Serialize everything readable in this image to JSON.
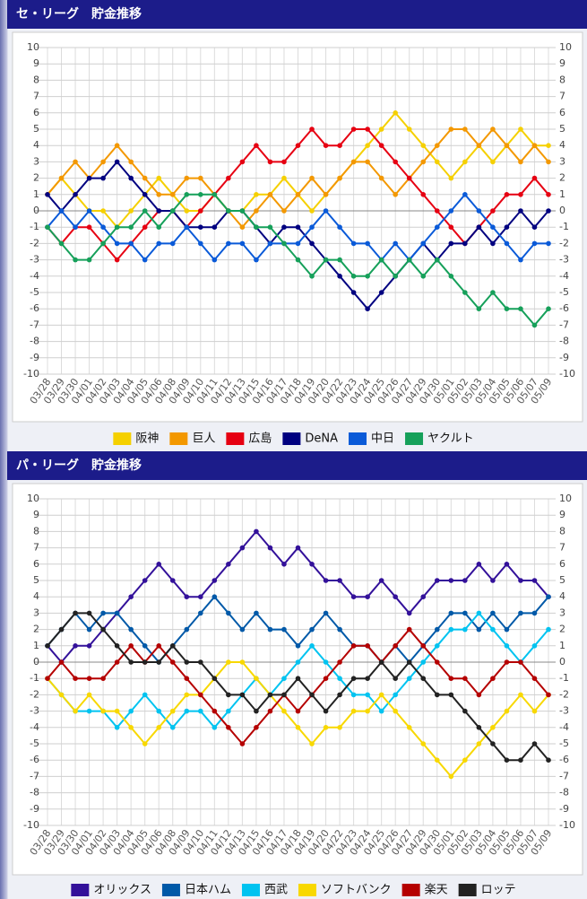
{
  "chart_data": [
    {
      "type": "line",
      "title": "セ・リーグ　貯金推移",
      "categories": [
        "03/28",
        "03/29",
        "03/30",
        "04/01",
        "04/02",
        "04/03",
        "04/04",
        "04/05",
        "04/06",
        "04/08",
        "04/09",
        "04/10",
        "04/11",
        "04/12",
        "04/13",
        "04/15",
        "04/16",
        "04/17",
        "04/18",
        "04/19",
        "04/20",
        "04/22",
        "04/23",
        "04/24",
        "04/25",
        "04/26",
        "04/27",
        "04/29",
        "04/30",
        "05/01",
        "05/02",
        "05/03",
        "05/04",
        "05/05",
        "05/06",
        "05/07",
        "05/09"
      ],
      "ylim": [
        -10,
        10
      ],
      "yticks": [
        -10,
        -9,
        -8,
        -7,
        -6,
        -5,
        -4,
        -3,
        -2,
        -1,
        0,
        1,
        2,
        3,
        4,
        5,
        6,
        7,
        8,
        9,
        10
      ],
      "grid": true,
      "series": [
        {
          "name": "阪神",
          "color": "#f5d000",
          "values": [
            1,
            2,
            1,
            0,
            0,
            -1,
            0,
            1,
            2,
            1,
            0,
            0,
            1,
            0,
            0,
            1,
            1,
            2,
            1,
            0,
            1,
            2,
            3,
            4,
            5,
            6,
            5,
            4,
            3,
            2,
            3,
            4,
            3,
            4,
            5,
            4,
            4
          ]
        },
        {
          "name": "巨人",
          "color": "#f39800",
          "values": [
            1,
            2,
            3,
            2,
            3,
            4,
            3,
            2,
            1,
            1,
            2,
            2,
            1,
            0,
            -1,
            0,
            1,
            0,
            1,
            2,
            1,
            2,
            3,
            3,
            2,
            1,
            2,
            3,
            4,
            5,
            5,
            4,
            5,
            4,
            3,
            4,
            3
          ]
        },
        {
          "name": "広島",
          "color": "#e60012",
          "values": [
            -1,
            -2,
            -1,
            -1,
            -2,
            -3,
            -2,
            -1,
            0,
            0,
            -1,
            0,
            1,
            2,
            3,
            4,
            3,
            3,
            4,
            5,
            4,
            4,
            5,
            5,
            4,
            3,
            2,
            1,
            0,
            -1,
            -2,
            -1,
            0,
            1,
            1,
            2,
            1
          ]
        },
        {
          "name": "DeNA",
          "color": "#000080",
          "values": [
            1,
            0,
            1,
            2,
            2,
            3,
            2,
            1,
            0,
            0,
            -1,
            -1,
            -1,
            0,
            0,
            -1,
            -2,
            -1,
            -1,
            -2,
            -3,
            -4,
            -5,
            -6,
            -5,
            -4,
            -3,
            -2,
            -3,
            -2,
            -2,
            -1,
            -2,
            -1,
            0,
            -1,
            0
          ]
        },
        {
          "name": "中日",
          "color": "#0a5ad8",
          "values": [
            -1,
            0,
            -1,
            0,
            -1,
            -2,
            -2,
            -3,
            -2,
            -2,
            -1,
            -2,
            -3,
            -2,
            -2,
            -3,
            -2,
            -2,
            -2,
            -1,
            0,
            -1,
            -2,
            -2,
            -3,
            -2,
            -3,
            -2,
            -1,
            0,
            1,
            0,
            -1,
            -2,
            -3,
            -2,
            -2
          ]
        },
        {
          "name": "ヤクルト",
          "color": "#16a05a",
          "values": [
            -1,
            -2,
            -3,
            -3,
            -2,
            -1,
            -1,
            0,
            -1,
            0,
            1,
            1,
            1,
            0,
            0,
            -1,
            -1,
            -2,
            -3,
            -4,
            -3,
            -3,
            -4,
            -4,
            -3,
            -4,
            -3,
            -4,
            -3,
            -4,
            -5,
            -6,
            -5,
            -6,
            -6,
            -7,
            -6
          ]
        }
      ]
    },
    {
      "type": "line",
      "title": "パ・リーグ　貯金推移",
      "categories": [
        "03/28",
        "03/29",
        "03/30",
        "04/01",
        "04/02",
        "04/03",
        "04/04",
        "04/05",
        "04/06",
        "04/08",
        "04/09",
        "04/10",
        "04/11",
        "04/12",
        "04/13",
        "04/15",
        "04/16",
        "04/17",
        "04/18",
        "04/19",
        "04/20",
        "04/22",
        "04/23",
        "04/24",
        "04/25",
        "04/26",
        "04/27",
        "04/29",
        "04/30",
        "05/01",
        "05/02",
        "05/03",
        "05/04",
        "05/05",
        "05/06",
        "05/07",
        "05/09"
      ],
      "ylim": [
        -10,
        10
      ],
      "yticks": [
        -10,
        -9,
        -8,
        -7,
        -6,
        -5,
        -4,
        -3,
        -2,
        -1,
        0,
        1,
        2,
        3,
        4,
        5,
        6,
        7,
        8,
        9,
        10
      ],
      "grid": true,
      "series": [
        {
          "name": "オリックス",
          "color": "#33119a",
          "values": [
            1,
            0,
            1,
            1,
            2,
            3,
            4,
            5,
            6,
            5,
            4,
            4,
            5,
            6,
            7,
            8,
            7,
            6,
            7,
            6,
            5,
            5,
            4,
            4,
            5,
            4,
            3,
            4,
            5,
            5,
            5,
            6,
            5,
            6,
            5,
            5,
            4
          ]
        },
        {
          "name": "日本ハム",
          "color": "#0059a8",
          "values": [
            1,
            2,
            3,
            2,
            3,
            3,
            2,
            1,
            0,
            1,
            2,
            3,
            4,
            3,
            2,
            3,
            2,
            2,
            1,
            2,
            3,
            2,
            1,
            1,
            0,
            1,
            0,
            1,
            2,
            3,
            3,
            2,
            3,
            2,
            3,
            3,
            4
          ]
        },
        {
          "name": "西武",
          "color": "#00c3f0",
          "values": [
            -1,
            -2,
            -3,
            -3,
            -3,
            -4,
            -3,
            -2,
            -3,
            -4,
            -3,
            -3,
            -4,
            -3,
            -2,
            -1,
            -2,
            -1,
            0,
            1,
            0,
            -1,
            -2,
            -2,
            -3,
            -2,
            -1,
            0,
            1,
            2,
            2,
            3,
            2,
            1,
            0,
            1,
            2
          ]
        },
        {
          "name": "ソフトバンク",
          "color": "#f8d800",
          "values": [
            -1,
            -2,
            -3,
            -2,
            -3,
            -3,
            -4,
            -5,
            -4,
            -3,
            -2,
            -2,
            -1,
            0,
            0,
            -1,
            -2,
            -3,
            -4,
            -5,
            -4,
            -4,
            -3,
            -3,
            -2,
            -3,
            -4,
            -5,
            -6,
            -7,
            -6,
            -5,
            -4,
            -3,
            -2,
            -3,
            -2
          ]
        },
        {
          "name": "楽天",
          "color": "#b50000",
          "values": [
            -1,
            0,
            -1,
            -1,
            -1,
            0,
            1,
            0,
            1,
            0,
            -1,
            -2,
            -3,
            -4,
            -5,
            -4,
            -3,
            -2,
            -3,
            -2,
            -1,
            0,
            1,
            1,
            0,
            1,
            2,
            1,
            0,
            -1,
            -1,
            -2,
            -1,
            0,
            0,
            -1,
            -2
          ]
        },
        {
          "name": "ロッテ",
          "color": "#222222",
          "values": [
            1,
            2,
            3,
            3,
            2,
            1,
            0,
            0,
            0,
            1,
            0,
            0,
            -1,
            -2,
            -2,
            -3,
            -2,
            -2,
            -1,
            -2,
            -3,
            -2,
            -1,
            -1,
            0,
            -1,
            0,
            -1,
            -2,
            -2,
            -3,
            -4,
            -5,
            -6,
            -6,
            -5,
            -6
          ]
        }
      ]
    }
  ]
}
